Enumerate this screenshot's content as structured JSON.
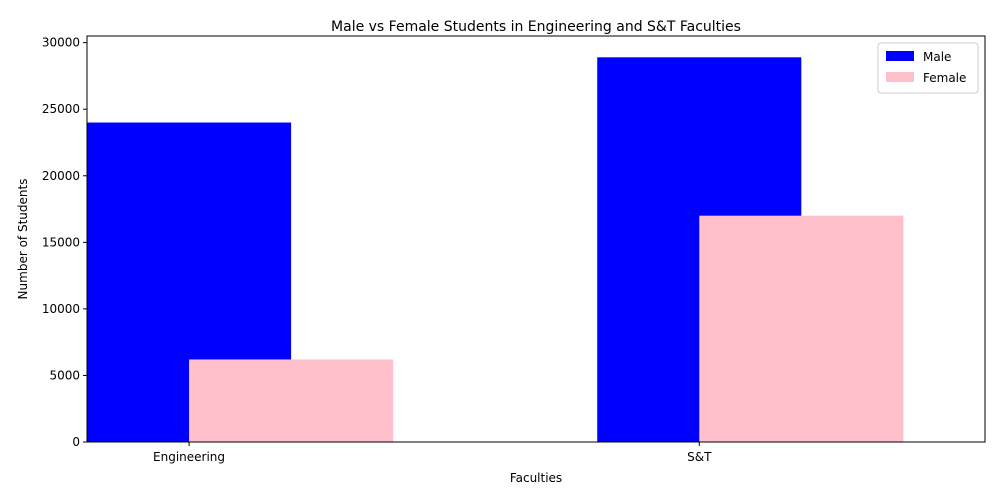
{
  "chart_data": {
    "type": "bar",
    "title": "Male vs Female Students in Engineering and S&T Faculties",
    "xlabel": "Faculties",
    "ylabel": "Number of Students",
    "categories": [
      "Engineering",
      "S&T"
    ],
    "series": [
      {
        "name": "Male",
        "values": [
          24000,
          28900
        ],
        "color": "#0000ff"
      },
      {
        "name": "Female",
        "values": [
          6200,
          17000
        ],
        "color": "#ffc0cb"
      }
    ],
    "ylim": [
      0,
      30500
    ],
    "yticks": [
      0,
      5000,
      10000,
      15000,
      20000,
      25000,
      30000
    ],
    "grid": false,
    "legend_position": "top-right"
  }
}
